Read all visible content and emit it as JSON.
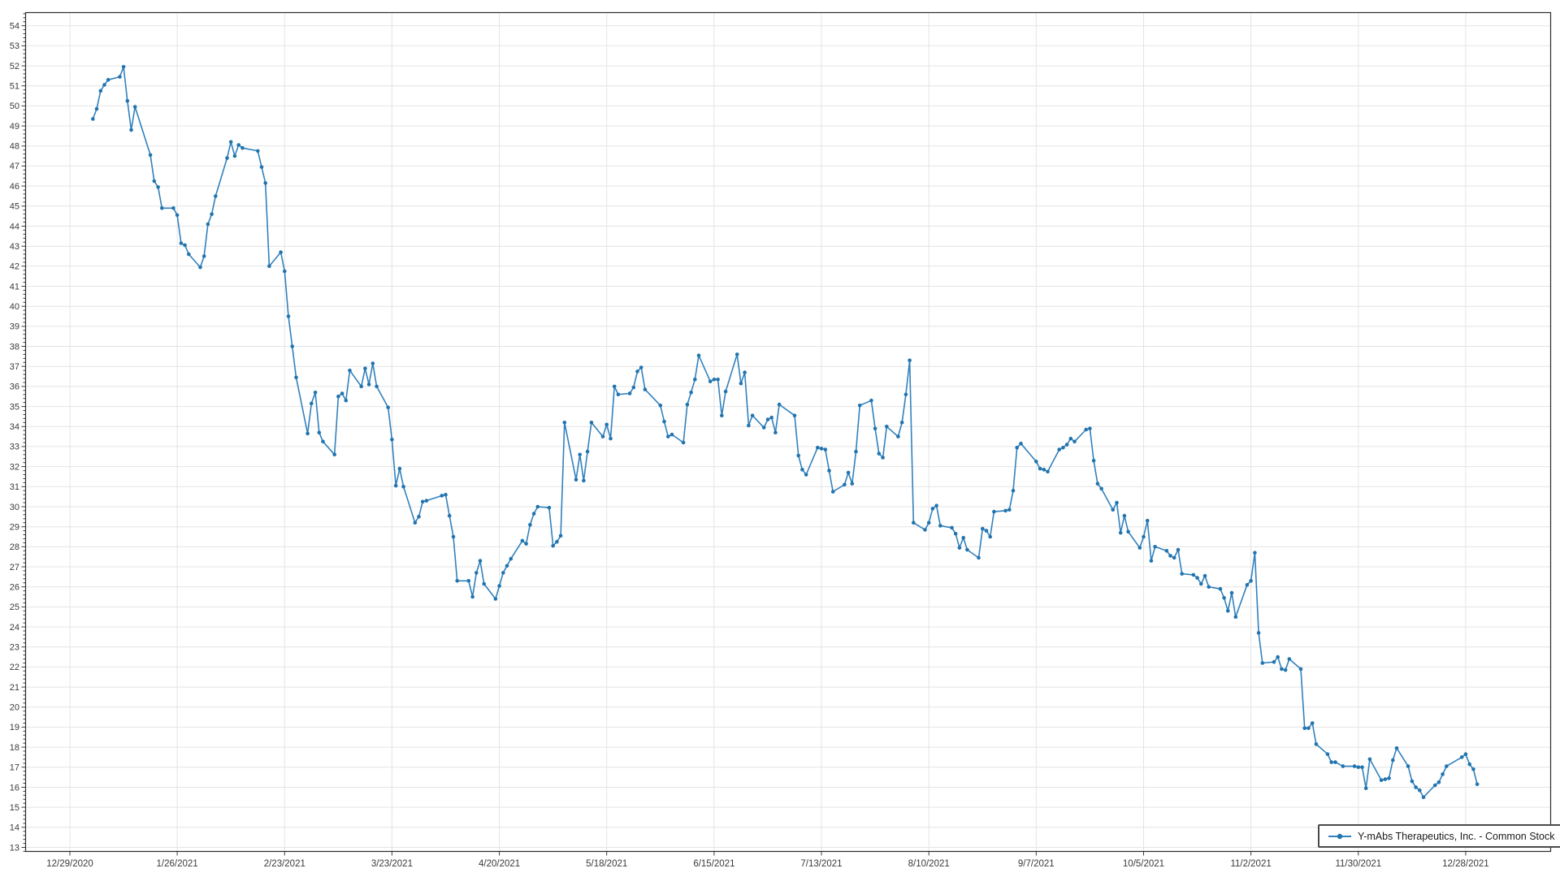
{
  "chart_data": {
    "type": "line",
    "title": "",
    "xlabel": "",
    "ylabel": "",
    "grid": true,
    "legend_position": "bottom-right",
    "x_axis": {
      "start_date": "12/29/2020",
      "tick_interval_days": 28,
      "tick_labels": [
        "12/29/2020",
        "1/26/2021",
        "2/23/2021",
        "3/23/2021",
        "4/20/2021",
        "5/18/2021",
        "6/15/2021",
        "7/13/2021",
        "8/10/2021",
        "9/7/2021",
        "10/5/2021",
        "11/2/2021",
        "11/30/2021",
        "12/28/2021"
      ]
    },
    "y_axis": {
      "min": 13,
      "max": 54,
      "major_step": 1,
      "minor_step": 0.2
    },
    "series": [
      {
        "name": "Y-mAbs Therapeutics, Inc. - Common Stock",
        "color": "#3181bd",
        "marker_color": "#2274ae",
        "points": [
          [
            "1/4/2021",
            49.35
          ],
          [
            "1/5/2021",
            49.85
          ],
          [
            "1/6/2021",
            50.75
          ],
          [
            "1/7/2021",
            51.05
          ],
          [
            "1/8/2021",
            51.3
          ],
          [
            "1/11/2021",
            51.45
          ],
          [
            "1/12/2021",
            51.95
          ],
          [
            "1/13/2021",
            50.25
          ],
          [
            "1/14/2021",
            48.8
          ],
          [
            "1/15/2021",
            49.95
          ],
          [
            "1/19/2021",
            47.55
          ],
          [
            "1/20/2021",
            46.25
          ],
          [
            "1/21/2021",
            45.95
          ],
          [
            "1/22/2021",
            44.9
          ],
          [
            "1/25/2021",
            44.9
          ],
          [
            "1/26/2021",
            44.55
          ],
          [
            "1/27/2021",
            43.15
          ],
          [
            "1/28/2021",
            43.05
          ],
          [
            "1/29/2021",
            42.6
          ],
          [
            "2/1/2021",
            41.95
          ],
          [
            "2/2/2021",
            42.5
          ],
          [
            "2/3/2021",
            44.1
          ],
          [
            "2/4/2021",
            44.6
          ],
          [
            "2/5/2021",
            45.5
          ],
          [
            "2/8/2021",
            47.4
          ],
          [
            "2/9/2021",
            48.2
          ],
          [
            "2/10/2021",
            47.5
          ],
          [
            "2/11/2021",
            48.05
          ],
          [
            "2/12/2021",
            47.9
          ],
          [
            "2/16/2021",
            47.75
          ],
          [
            "2/17/2021",
            46.95
          ],
          [
            "2/18/2021",
            46.15
          ],
          [
            "2/19/2021",
            42.0
          ],
          [
            "2/22/2021",
            42.7
          ],
          [
            "2/23/2021",
            41.75
          ],
          [
            "2/24/2021",
            39.5
          ],
          [
            "2/25/2021",
            38.0
          ],
          [
            "2/26/2021",
            36.45
          ],
          [
            "3/1/2021",
            33.65
          ],
          [
            "3/2/2021",
            35.15
          ],
          [
            "3/3/2021",
            35.7
          ],
          [
            "3/4/2021",
            33.7
          ],
          [
            "3/5/2021",
            33.25
          ],
          [
            "3/8/2021",
            32.6
          ],
          [
            "3/9/2021",
            35.5
          ],
          [
            "3/10/2021",
            35.65
          ],
          [
            "3/11/2021",
            35.3
          ],
          [
            "3/12/2021",
            36.8
          ],
          [
            "3/15/2021",
            36.0
          ],
          [
            "3/16/2021",
            36.9
          ],
          [
            "3/17/2021",
            36.1
          ],
          [
            "3/18/2021",
            37.15
          ],
          [
            "3/19/2021",
            36.0
          ],
          [
            "3/22/2021",
            34.95
          ],
          [
            "3/23/2021",
            33.35
          ],
          [
            "3/24/2021",
            31.05
          ],
          [
            "3/25/2021",
            31.9
          ],
          [
            "3/26/2021",
            31.0
          ],
          [
            "3/29/2021",
            29.2
          ],
          [
            "3/30/2021",
            29.5
          ],
          [
            "3/31/2021",
            30.25
          ],
          [
            "4/1/2021",
            30.3
          ],
          [
            "4/5/2021",
            30.55
          ],
          [
            "4/6/2021",
            30.6
          ],
          [
            "4/7/2021",
            29.55
          ],
          [
            "4/8/2021",
            28.5
          ],
          [
            "4/9/2021",
            26.3
          ],
          [
            "4/12/2021",
            26.3
          ],
          [
            "4/13/2021",
            25.5
          ],
          [
            "4/14/2021",
            26.7
          ],
          [
            "4/15/2021",
            27.3
          ],
          [
            "4/16/2021",
            26.15
          ],
          [
            "4/19/2021",
            25.4
          ],
          [
            "4/20/2021",
            26.05
          ],
          [
            "4/21/2021",
            26.7
          ],
          [
            "4/22/2021",
            27.05
          ],
          [
            "4/23/2021",
            27.4
          ],
          [
            "4/26/2021",
            28.3
          ],
          [
            "4/27/2021",
            28.15
          ],
          [
            "4/28/2021",
            29.1
          ],
          [
            "4/29/2021",
            29.65
          ],
          [
            "4/30/2021",
            30.0
          ],
          [
            "5/3/2021",
            29.95
          ],
          [
            "5/4/2021",
            28.05
          ],
          [
            "5/5/2021",
            28.25
          ],
          [
            "5/6/2021",
            28.55
          ],
          [
            "5/7/2021",
            34.2
          ],
          [
            "5/10/2021",
            31.35
          ],
          [
            "5/11/2021",
            32.6
          ],
          [
            "5/12/2021",
            31.3
          ],
          [
            "5/13/2021",
            32.75
          ],
          [
            "5/14/2021",
            34.2
          ],
          [
            "5/17/2021",
            33.5
          ],
          [
            "5/18/2021",
            34.1
          ],
          [
            "5/19/2021",
            33.4
          ],
          [
            "5/20/2021",
            36.0
          ],
          [
            "5/21/2021",
            35.6
          ],
          [
            "5/24/2021",
            35.65
          ],
          [
            "5/25/2021",
            35.95
          ],
          [
            "5/26/2021",
            36.75
          ],
          [
            "5/27/2021",
            36.95
          ],
          [
            "5/28/2021",
            35.85
          ],
          [
            "6/1/2021",
            35.05
          ],
          [
            "6/2/2021",
            34.25
          ],
          [
            "6/3/2021",
            33.5
          ],
          [
            "6/4/2021",
            33.6
          ],
          [
            "6/7/2021",
            33.2
          ],
          [
            "6/8/2021",
            35.1
          ],
          [
            "6/9/2021",
            35.7
          ],
          [
            "6/10/2021",
            36.35
          ],
          [
            "6/11/2021",
            37.55
          ],
          [
            "6/14/2021",
            36.25
          ],
          [
            "6/15/2021",
            36.35
          ],
          [
            "6/16/2021",
            36.35
          ],
          [
            "6/17/2021",
            34.55
          ],
          [
            "6/18/2021",
            35.75
          ],
          [
            "6/21/2021",
            37.6
          ],
          [
            "6/22/2021",
            36.15
          ],
          [
            "6/23/2021",
            36.7
          ],
          [
            "6/24/2021",
            34.05
          ],
          [
            "6/25/2021",
            34.55
          ],
          [
            "6/28/2021",
            33.95
          ],
          [
            "6/29/2021",
            34.35
          ],
          [
            "6/30/2021",
            34.45
          ],
          [
            "7/1/2021",
            33.7
          ],
          [
            "7/2/2021",
            35.1
          ],
          [
            "7/6/2021",
            34.55
          ],
          [
            "7/7/2021",
            32.55
          ],
          [
            "7/8/2021",
            31.85
          ],
          [
            "7/9/2021",
            31.6
          ],
          [
            "7/12/2021",
            32.95
          ],
          [
            "7/13/2021",
            32.9
          ],
          [
            "7/14/2021",
            32.85
          ],
          [
            "7/15/2021",
            31.8
          ],
          [
            "7/16/2021",
            30.75
          ],
          [
            "7/19/2021",
            31.1
          ],
          [
            "7/20/2021",
            31.7
          ],
          [
            "7/21/2021",
            31.15
          ],
          [
            "7/22/2021",
            32.75
          ],
          [
            "7/23/2021",
            35.05
          ],
          [
            "7/26/2021",
            35.3
          ],
          [
            "7/27/2021",
            33.9
          ],
          [
            "7/28/2021",
            32.65
          ],
          [
            "7/29/2021",
            32.45
          ],
          [
            "7/30/2021",
            34.0
          ],
          [
            "8/2/2021",
            33.5
          ],
          [
            "8/3/2021",
            34.2
          ],
          [
            "8/4/2021",
            35.6
          ],
          [
            "8/5/2021",
            37.3
          ],
          [
            "8/6/2021",
            29.2
          ],
          [
            "8/9/2021",
            28.85
          ],
          [
            "8/10/2021",
            29.2
          ],
          [
            "8/11/2021",
            29.9
          ],
          [
            "8/12/2021",
            30.05
          ],
          [
            "8/13/2021",
            29.05
          ],
          [
            "8/16/2021",
            28.95
          ],
          [
            "8/17/2021",
            28.65
          ],
          [
            "8/18/2021",
            27.95
          ],
          [
            "8/19/2021",
            28.45
          ],
          [
            "8/20/2021",
            27.85
          ],
          [
            "8/23/2021",
            27.45
          ],
          [
            "8/24/2021",
            28.9
          ],
          [
            "8/25/2021",
            28.8
          ],
          [
            "8/26/2021",
            28.5
          ],
          [
            "8/27/2021",
            29.75
          ],
          [
            "8/30/2021",
            29.8
          ],
          [
            "8/31/2021",
            29.85
          ],
          [
            "9/1/2021",
            30.8
          ],
          [
            "9/2/2021",
            32.95
          ],
          [
            "9/3/2021",
            33.15
          ],
          [
            "9/7/2021",
            32.25
          ],
          [
            "9/8/2021",
            31.9
          ],
          [
            "9/9/2021",
            31.85
          ],
          [
            "9/10/2021",
            31.75
          ],
          [
            "9/13/2021",
            32.85
          ],
          [
            "9/14/2021",
            32.95
          ],
          [
            "9/15/2021",
            33.1
          ],
          [
            "9/16/2021",
            33.4
          ],
          [
            "9/17/2021",
            33.25
          ],
          [
            "9/20/2021",
            33.85
          ],
          [
            "9/21/2021",
            33.9
          ],
          [
            "9/22/2021",
            32.3
          ],
          [
            "9/23/2021",
            31.15
          ],
          [
            "9/24/2021",
            30.9
          ],
          [
            "9/27/2021",
            29.85
          ],
          [
            "9/28/2021",
            30.2
          ],
          [
            "9/29/2021",
            28.7
          ],
          [
            "9/30/2021",
            29.55
          ],
          [
            "10/1/2021",
            28.75
          ],
          [
            "10/4/2021",
            27.95
          ],
          [
            "10/5/2021",
            28.5
          ],
          [
            "10/6/2021",
            29.3
          ],
          [
            "10/7/2021",
            27.3
          ],
          [
            "10/8/2021",
            28.0
          ],
          [
            "10/11/2021",
            27.8
          ],
          [
            "10/12/2021",
            27.55
          ],
          [
            "10/13/2021",
            27.45
          ],
          [
            "10/14/2021",
            27.85
          ],
          [
            "10/15/2021",
            26.65
          ],
          [
            "10/18/2021",
            26.6
          ],
          [
            "10/19/2021",
            26.45
          ],
          [
            "10/20/2021",
            26.15
          ],
          [
            "10/21/2021",
            26.55
          ],
          [
            "10/22/2021",
            26.0
          ],
          [
            "10/25/2021",
            25.9
          ],
          [
            "10/26/2021",
            25.45
          ],
          [
            "10/27/2021",
            24.8
          ],
          [
            "10/28/2021",
            25.7
          ],
          [
            "10/29/2021",
            24.5
          ],
          [
            "11/1/2021",
            26.1
          ],
          [
            "11/2/2021",
            26.3
          ],
          [
            "11/3/2021",
            27.7
          ],
          [
            "11/4/2021",
            23.7
          ],
          [
            "11/5/2021",
            22.2
          ],
          [
            "11/8/2021",
            22.25
          ],
          [
            "11/9/2021",
            22.5
          ],
          [
            "11/10/2021",
            21.9
          ],
          [
            "11/11/2021",
            21.85
          ],
          [
            "11/12/2021",
            22.4
          ],
          [
            "11/15/2021",
            21.9
          ],
          [
            "11/16/2021",
            18.95
          ],
          [
            "11/17/2021",
            18.95
          ],
          [
            "11/18/2021",
            19.2
          ],
          [
            "11/19/2021",
            18.15
          ],
          [
            "11/22/2021",
            17.65
          ],
          [
            "11/23/2021",
            17.25
          ],
          [
            "11/24/2021",
            17.25
          ],
          [
            "11/26/2021",
            17.05
          ],
          [
            "11/29/2021",
            17.05
          ],
          [
            "11/30/2021",
            17.0
          ],
          [
            "12/1/2021",
            17.0
          ],
          [
            "12/2/2021",
            15.95
          ],
          [
            "12/3/2021",
            17.4
          ],
          [
            "12/6/2021",
            16.35
          ],
          [
            "12/7/2021",
            16.4
          ],
          [
            "12/8/2021",
            16.45
          ],
          [
            "12/9/2021",
            17.35
          ],
          [
            "12/10/2021",
            17.95
          ],
          [
            "12/13/2021",
            17.05
          ],
          [
            "12/14/2021",
            16.3
          ],
          [
            "12/15/2021",
            16.0
          ],
          [
            "12/16/2021",
            15.85
          ],
          [
            "12/17/2021",
            15.5
          ],
          [
            "12/20/2021",
            16.1
          ],
          [
            "12/21/2021",
            16.25
          ],
          [
            "12/22/2021",
            16.65
          ],
          [
            "12/23/2021",
            17.05
          ],
          [
            "12/27/2021",
            17.5
          ],
          [
            "12/28/2021",
            17.65
          ],
          [
            "12/29/2021",
            17.15
          ],
          [
            "12/30/2021",
            16.9
          ],
          [
            "12/31/2021",
            16.15
          ]
        ]
      }
    ]
  },
  "legend": {
    "label": "Y-mAbs Therapeutics, Inc. - Common Stock"
  },
  "colors": {
    "line": "#3181bd",
    "marker": "#2274ae",
    "grid": "#e4e4e4",
    "axis_border": "#2b2b2b",
    "tick": "#3c3c3c",
    "tick_text": "#3a3a3a",
    "background": "#ffffff"
  }
}
